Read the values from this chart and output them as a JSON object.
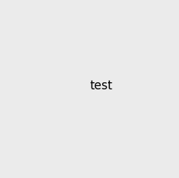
{
  "background_color": "#ebebeb",
  "bond_color": "#1a1a1a",
  "N_color": "#2020ff",
  "O_color": "#ff2020",
  "line_width": 1.5,
  "font_size": 8.5
}
